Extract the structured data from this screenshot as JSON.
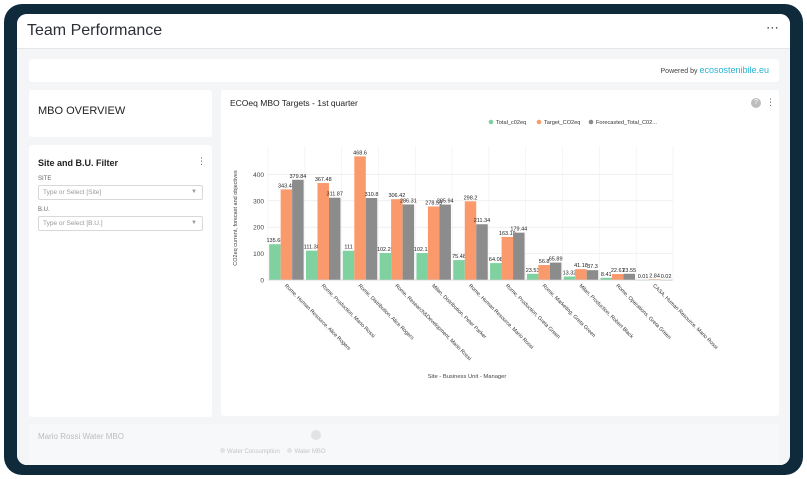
{
  "page": {
    "title": "Team Performance",
    "menu_icon": "kebab-horizontal-icon"
  },
  "powered": {
    "prefix": "Powered by",
    "brand": "ecosostenibile.eu"
  },
  "mbo_overview": {
    "title": "MBO OVERVIEW"
  },
  "filter": {
    "title": "Site and B.U. Filter",
    "site_label": "SITE",
    "site_placeholder": "Type or Select [Site]",
    "bu_label": "B.U.",
    "bu_placeholder": "Type or Select [B.U.]"
  },
  "chart_card": {
    "title": "ECOeq MBO Targets - 1st quarter",
    "help": "?"
  },
  "faded_card": {
    "title": "Mario Rossi Water MBO",
    "legend": [
      "Water Consumption",
      "Water MBO"
    ]
  },
  "chart_data": {
    "type": "bar",
    "title": "ECOeq MBO Targets - 1st quarter",
    "xlabel": "Site - Business Unit - Manager",
    "ylabel": "CO2eq current, forecast and objectives",
    "ylim": [
      0,
      470
    ],
    "yticks": [
      0,
      100,
      200,
      300,
      400
    ],
    "grid": true,
    "legend_position": "top-right",
    "colors": {
      "Total_c02eq": "#7fd1a0",
      "Target_CO2eq": "#fa9a6c",
      "Forecasted_Total_CO2": "#8c8c8c"
    },
    "legend_labels": [
      "Total_c02eq",
      "Target_CO2eq",
      "Forecasted_Total_C02..."
    ],
    "categories": [
      "Rome, Human Resource, Alice Rogers",
      "Rome, Production, Mario Rossi",
      "Rome, Distribution, Alice Rogers",
      "Rome, Research&Development, Mario Rossi",
      "Milan, Distribution, Peter Parker",
      "Rome, Human Resource, Mario Rossi",
      "Rome, Production, Greta Green",
      "Rome, Marketing, Greta Green",
      "Milan, Production, Robert Black",
      "Rome, Operations, Greta Green",
      "CASA, Human Resource, Mario Rossi"
    ],
    "series": [
      {
        "name": "Total_c02eq",
        "values": [
          135.68,
          111.38,
          111,
          102.25,
          102.12,
          75.48,
          64.08,
          23.53,
          13.32,
          8.41,
          0.01
        ],
        "labels": [
          "135.68",
          "111.38",
          "111",
          "102.25",
          "102.12",
          "75.48",
          "64.08",
          "23.53",
          "13.32",
          "8.41",
          "0.01"
        ]
      },
      {
        "name": "Target_CO2eq",
        "values": [
          343.48,
          367.48,
          468.6,
          306.42,
          278.59,
          298.2,
          163.19,
          56.8,
          41.18,
          22.61,
          2.84
        ],
        "labels": [
          "343.48",
          "367.48",
          "468.6",
          "306.42",
          "278.59",
          "298.2",
          "163.19",
          "56.8",
          "41.18",
          "22.61",
          "2.84"
        ]
      },
      {
        "name": "Forecasted_Total_C02...",
        "values": [
          379.84,
          311.87,
          310.8,
          286.31,
          285.94,
          211.34,
          179.44,
          65.89,
          37.3,
          23.55,
          0.02
        ],
        "labels": [
          "379.84",
          "311.87",
          "310.8",
          "286.31",
          "285.94",
          "211.34",
          "179.44",
          "65.89",
          "37.3",
          "23.55",
          "0.02"
        ]
      }
    ]
  }
}
